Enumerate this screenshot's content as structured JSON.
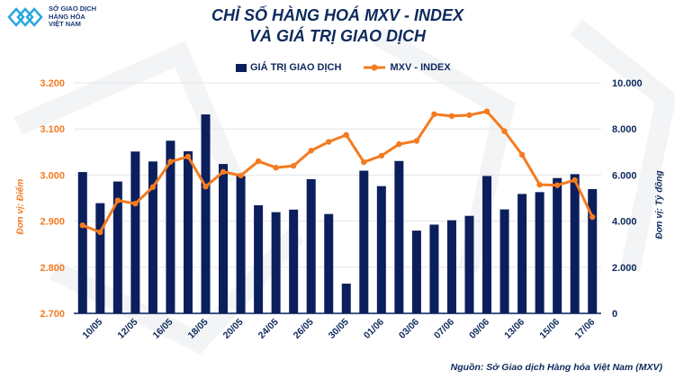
{
  "logo": {
    "line1": "SỞ GIAO DỊCH",
    "line2": "HÀNG HÓA",
    "line3": "VIỆT NAM"
  },
  "title": {
    "line1": "CHỈ SỐ HÀNG HOÁ MXV - INDEX",
    "line2": "VÀ GIÁ TRỊ GIAO DỊCH"
  },
  "source": "Nguồn: Sở Giao dịch Hàng hóa Việt Nam (MXV)",
  "colors": {
    "bar": "#0b1f5c",
    "line": "#f47b20",
    "title": "#0d2a5c"
  },
  "chart_data": {
    "type": "bar+line",
    "categories": [
      "09/05",
      "10/05",
      "11/05",
      "12/05",
      "13/05",
      "16/05",
      "17/05",
      "18/05",
      "19/05",
      "20/05",
      "23/05",
      "24/05",
      "25/05",
      "26/05",
      "27/05",
      "30/05",
      "31/05",
      "01/06",
      "02/06",
      "03/06",
      "06/06",
      "07/06",
      "08/06",
      "09/06",
      "10/06",
      "13/06",
      "14/06",
      "15/06",
      "16/06",
      "17/06"
    ],
    "tick_labels": [
      "10/05",
      "12/05",
      "16/05",
      "18/05",
      "20/05",
      "24/05",
      "26/05",
      "30/05",
      "01/06",
      "03/06",
      "07/06",
      "09/06",
      "13/06",
      "15/06",
      "17/06"
    ],
    "series": [
      {
        "name": "GIÁ TRỊ GIAO DỊCH",
        "type": "bar",
        "axis": "right",
        "values": [
          6130,
          4780,
          5720,
          7020,
          6590,
          7490,
          7030,
          8630,
          6480,
          5960,
          4690,
          4390,
          4500,
          5820,
          4310,
          1290,
          6190,
          5520,
          6610,
          3590,
          3850,
          4040,
          4230,
          5960,
          4510,
          5180,
          5260,
          5870,
          6040,
          5390
        ]
      },
      {
        "name": "MXV - INDEX",
        "type": "line",
        "axis": "left",
        "values": [
          2891,
          2876,
          2945,
          2938,
          2974,
          3029,
          3040,
          2975,
          3007,
          2999,
          3030,
          3016,
          3020,
          3053,
          3072,
          3087,
          3028,
          3042,
          3067,
          3074,
          3132,
          3128,
          3130,
          3138,
          3095,
          3044,
          2979,
          2978,
          2989,
          2909
        ]
      }
    ],
    "left_axis": {
      "label": "Đơn vị: Điểm",
      "range": [
        2700,
        3200
      ],
      "ticks": [
        "2.700",
        "2.800",
        "2.900",
        "3.000",
        "3.100",
        "3.200"
      ]
    },
    "right_axis": {
      "label": "Đơn vị: Tỷ đồng",
      "range": [
        0,
        10000
      ],
      "ticks": [
        "0",
        "2.000",
        "4.000",
        "6.000",
        "8.000",
        "10.000"
      ]
    },
    "grid": true,
    "legend": "top"
  }
}
